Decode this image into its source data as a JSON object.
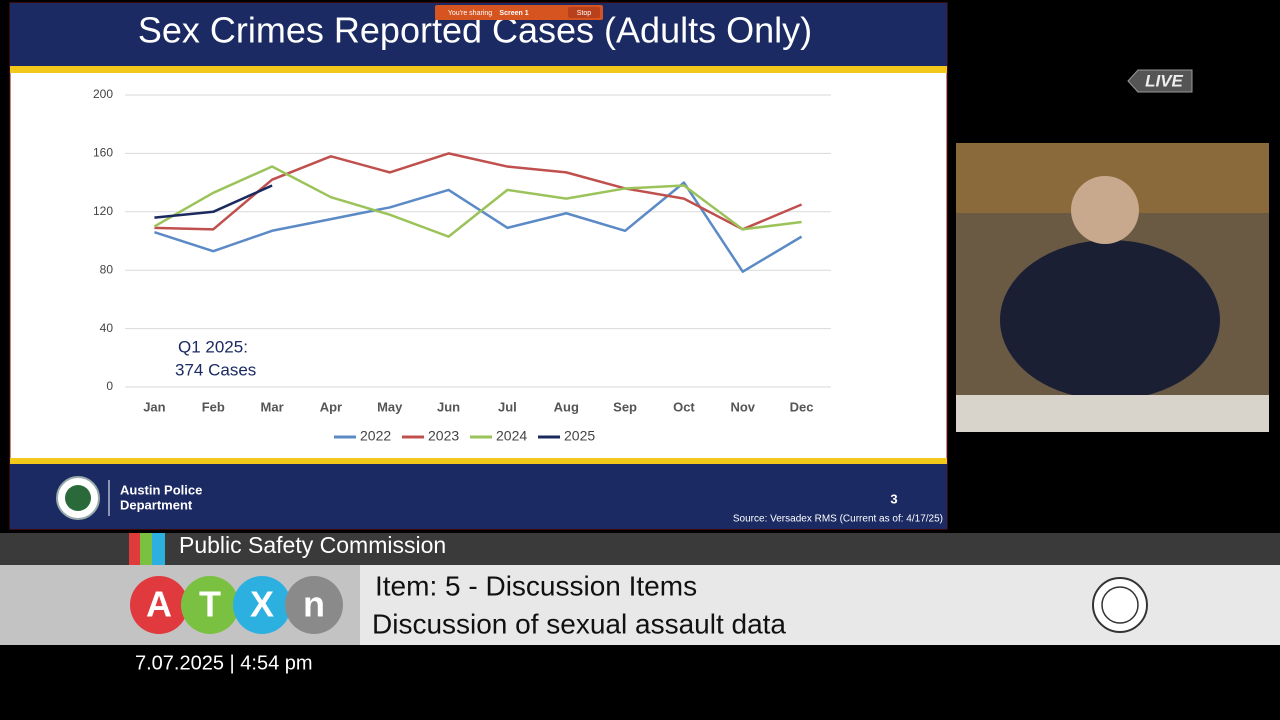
{
  "chart_data": {
    "type": "line",
    "title": "Sex Crimes Reported Cases (Adults Only)",
    "categories": [
      "Jan",
      "Feb",
      "Mar",
      "Apr",
      "May",
      "Jun",
      "Jul",
      "Aug",
      "Sep",
      "Oct",
      "Nov",
      "Dec"
    ],
    "series": [
      {
        "name": "2022",
        "color": "#5b8ac6",
        "values": [
          106,
          93,
          107,
          115,
          123,
          135,
          109,
          119,
          107,
          140,
          79,
          103
        ]
      },
      {
        "name": "2023",
        "color": "#c0504d",
        "values": [
          109,
          108,
          142,
          158,
          147,
          160,
          151,
          147,
          136,
          129,
          108,
          125
        ]
      },
      {
        "name": "2024",
        "color": "#9bc35a",
        "values": [
          110,
          133,
          151,
          130,
          118,
          103,
          135,
          129,
          136,
          138,
          108,
          113
        ]
      },
      {
        "name": "2025",
        "color": "#1a2a5e",
        "values": [
          116,
          120,
          138,
          null,
          null,
          null,
          null,
          null,
          null,
          null,
          null,
          null
        ]
      }
    ],
    "ylim": [
      0,
      200
    ],
    "yticks": [
      0,
      40,
      80,
      120,
      160,
      200
    ],
    "grid": true,
    "legend": "bottom",
    "annotation": [
      "Q1 2025:",
      "374 Cases"
    ]
  },
  "slide": {
    "org": [
      "Austin Police",
      "Department"
    ],
    "page": "3",
    "source": "Source: Versadex RMS (Current as of: 4/17/25)",
    "sharing": [
      "You're sharing",
      "Screen 1",
      "Stop"
    ]
  },
  "broadcast": {
    "live": "LIVE",
    "commission": "Public Safety Commission",
    "logo": [
      "A",
      "T",
      "X",
      "n"
    ],
    "item": "Item: 5 - Discussion Items",
    "topic": "Discussion of sexual assault data",
    "timestamp": "7.07.2025 | 4:54 pm"
  }
}
